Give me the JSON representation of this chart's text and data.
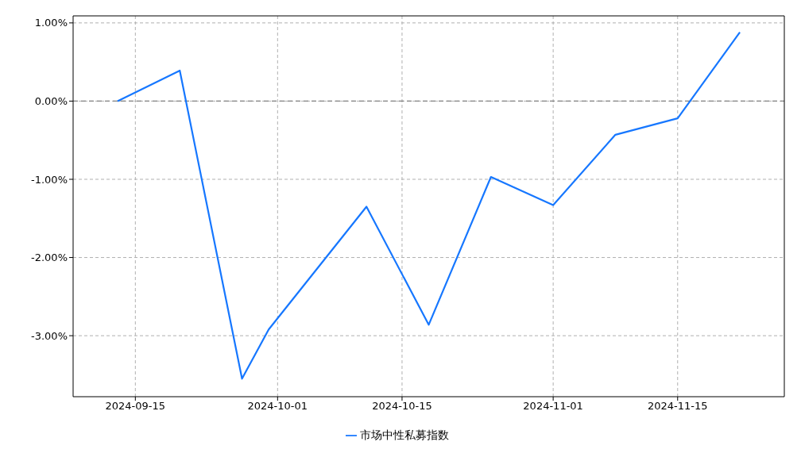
{
  "chart_data": {
    "type": "line",
    "x": [
      "2024-09-13",
      "2024-09-20",
      "2024-09-27",
      "2024-09-30",
      "2024-10-11",
      "2024-10-18",
      "2024-10-25",
      "2024-11-01",
      "2024-11-08",
      "2024-11-15",
      "2024-11-22"
    ],
    "series": [
      {
        "name": "市场中性私募指数",
        "color": "#1677ff",
        "values": [
          0,
          0.39,
          -3.55,
          -2.92,
          -1.35,
          -2.86,
          -0.97,
          -1.33,
          -0.43,
          -0.22,
          0.88
        ]
      }
    ],
    "xlim": [
      "2024-09-08",
      "2024-11-27"
    ],
    "xticks": [
      "2024-09-15",
      "2024-10-01",
      "2024-10-15",
      "2024-11-01",
      "2024-11-15"
    ],
    "ylim": [
      -3.78,
      1.09
    ],
    "yticks": [
      {
        "value": -3,
        "label": "-3.00%"
      },
      {
        "value": -2,
        "label": "-2.00%"
      },
      {
        "value": -1,
        "label": "-1.00%"
      },
      {
        "value": 0,
        "label": "0.00%"
      },
      {
        "value": 1,
        "label": "1.00%"
      }
    ],
    "ref_lines": [
      {
        "axis": "y",
        "value": 0,
        "label": null,
        "color": "#808080",
        "line_style": "dashed"
      }
    ],
    "grid": true,
    "legend": "bottom",
    "marker": "none",
    "line_style": "solid"
  }
}
